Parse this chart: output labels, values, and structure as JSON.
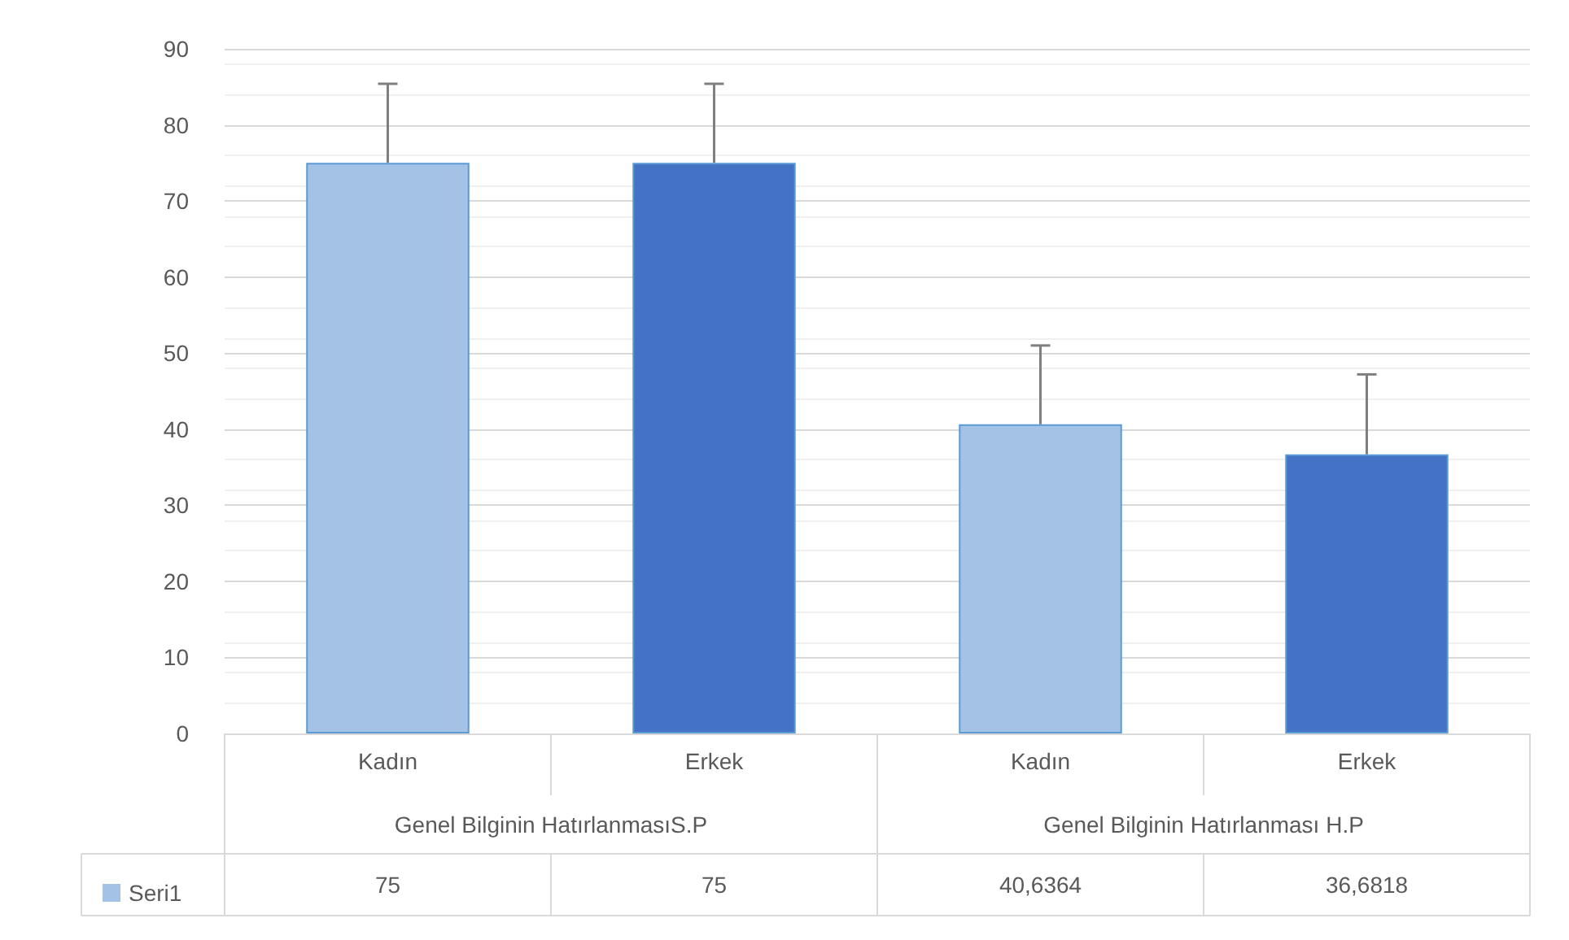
{
  "chart_data": {
    "type": "bar",
    "categories": [
      "Kadın",
      "Erkek",
      "Kadın",
      "Erkek"
    ],
    "annotations": [
      "Genel Bilginin HatırlanmasıS.P",
      "Genel Bilginin Hatırlanması H.P"
    ],
    "series": [
      {
        "name": "Seri1",
        "color": "#a4c2e6",
        "colors": [
          "#a4c2e6",
          "#4472c4",
          "#a4c2e6",
          "#4472c4"
        ],
        "values": [
          75,
          75,
          40.6364,
          36.6818
        ],
        "value_labels": [
          "75",
          "75",
          "40,6364",
          "36,6818"
        ],
        "errors": [
          [
            75,
            85.4
          ],
          [
            75,
            85.4
          ],
          [
            40.6364,
            51.0
          ],
          [
            36.6818,
            47.2
          ]
        ]
      }
    ],
    "ylim": [
      0,
      90
    ],
    "yticks": [
      0,
      10,
      20,
      30,
      40,
      50,
      60,
      70,
      80,
      90
    ],
    "grid": true,
    "legend": "bottom left"
  }
}
